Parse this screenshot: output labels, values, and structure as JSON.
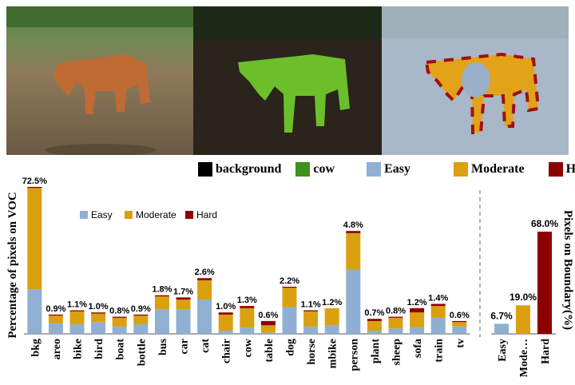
{
  "colors": {
    "background": "#000000",
    "cow": "#3f8f1f",
    "easy": "#8fb0d3",
    "moderate": "#dba010",
    "hard": "#8b0000"
  },
  "legend_top": [
    {
      "label": "background",
      "color": "#000000"
    },
    {
      "label": "cow",
      "color": "#3f8f1f"
    },
    {
      "label": "Easy",
      "color": "#8fb0d3"
    },
    {
      "label": "Moderate",
      "color": "#dba010"
    },
    {
      "label": "Hard",
      "color": "#8b0000"
    }
  ],
  "chart_data": [
    {
      "type": "bar",
      "stacked": true,
      "ylabel": "Percentage of pixels on VOC",
      "legend": [
        "Easy",
        "Moderate",
        "Hard"
      ],
      "legend_position": "top-left",
      "ylim": [
        0,
        72.5
      ],
      "categories": [
        "bkg",
        "areo",
        "bike",
        "bird",
        "boat",
        "bottle",
        "bus",
        "car",
        "cat",
        "chair",
        "cow",
        "table",
        "dog",
        "horse",
        "mbike",
        "person",
        "plant",
        "sheep",
        "sofa",
        "train",
        "tv"
      ],
      "total_labels": [
        "72.5%",
        "0.9%",
        "1.1%",
        "1.0%",
        "0.8%",
        "0.9%",
        "1.8%",
        "1.7%",
        "2.6%",
        "1.0%",
        "1.3%",
        "0.6%",
        "2.2%",
        "1.1%",
        "1.2%",
        "4.8%",
        "0.7%",
        "0.8%",
        "1.2%",
        "1.4%",
        "0.6%"
      ],
      "series": [
        {
          "name": "Easy",
          "values": [
            22.0,
            0.5,
            0.45,
            0.55,
            0.35,
            0.45,
            1.15,
            1.15,
            1.6,
            0.15,
            0.3,
            0.05,
            1.25,
            0.35,
            0.4,
            3.0,
            0.15,
            0.25,
            0.3,
            0.75,
            0.35
          ]
        },
        {
          "name": "Moderate",
          "values": [
            50.0,
            0.35,
            0.6,
            0.4,
            0.4,
            0.4,
            0.6,
            0.45,
            0.9,
            0.75,
            0.9,
            0.35,
            0.9,
            0.7,
            0.8,
            1.7,
            0.45,
            0.5,
            0.7,
            0.55,
            0.2
          ]
        },
        {
          "name": "Hard",
          "values": [
            0.5,
            0.05,
            0.05,
            0.05,
            0.05,
            0.05,
            0.05,
            0.1,
            0.1,
            0.1,
            0.1,
            0.2,
            0.05,
            0.05,
            0.0,
            0.1,
            0.1,
            0.05,
            0.2,
            0.1,
            0.05
          ]
        }
      ]
    },
    {
      "type": "bar",
      "ylabel": "Pixels on Boundary(%)",
      "categories": [
        "Easy",
        "Mode…",
        "Hard"
      ],
      "values": [
        6.7,
        19.0,
        68.0
      ],
      "value_labels": [
        "6.7%",
        "19.0%",
        "68.0%"
      ],
      "colors": [
        "#8fb0d3",
        "#dba010",
        "#8b0000"
      ],
      "ylim": [
        0,
        100
      ]
    }
  ]
}
